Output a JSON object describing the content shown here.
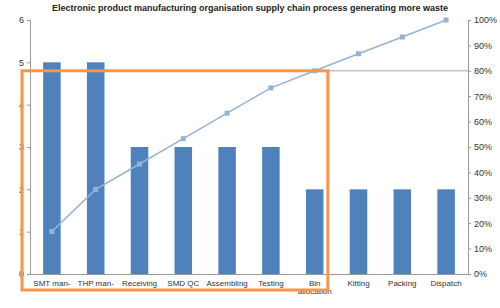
{
  "chart_data": {
    "type": "bar",
    "title": "Electronic product manufacturing organisation supply chain process generating more waste",
    "categories": [
      "SMT man-",
      "THP man-",
      "Receiving",
      "SMD QC",
      "Assembling",
      "Testing",
      "Bin allocation",
      "Kitting",
      "Packing",
      "Dispatch"
    ],
    "series": [
      {
        "type": "bar",
        "color": "#4f81bd",
        "values": [
          5,
          5,
          3,
          3,
          3,
          3,
          2,
          2,
          2,
          2
        ]
      },
      {
        "type": "line",
        "axis": "y2",
        "color": "#95b3d7",
        "marker": "square",
        "values": [
          16.7,
          33.3,
          43.3,
          53.3,
          63.3,
          73.3,
          80,
          86.7,
          93.3,
          100
        ]
      }
    ],
    "ylim": [
      0,
      6
    ],
    "yticks": [
      0,
      1,
      2,
      3,
      4,
      5,
      6
    ],
    "y2lim": [
      0,
      100
    ],
    "y2ticks": [
      {
        "value": 0,
        "label": "0%"
      },
      {
        "value": 10,
        "label": "10%"
      },
      {
        "value": 20,
        "label": "20%"
      },
      {
        "value": 30,
        "label": "30%"
      },
      {
        "value": 40,
        "label": "40%"
      },
      {
        "value": 50,
        "label": "50%"
      },
      {
        "value": 60,
        "label": "60%"
      },
      {
        "value": 70,
        "label": "70%"
      },
      {
        "value": 80,
        "label": "80%"
      },
      {
        "value": 90,
        "label": "90%"
      },
      {
        "value": 100,
        "label": "100%"
      }
    ],
    "grid": false,
    "y2_reference": 80
  }
}
